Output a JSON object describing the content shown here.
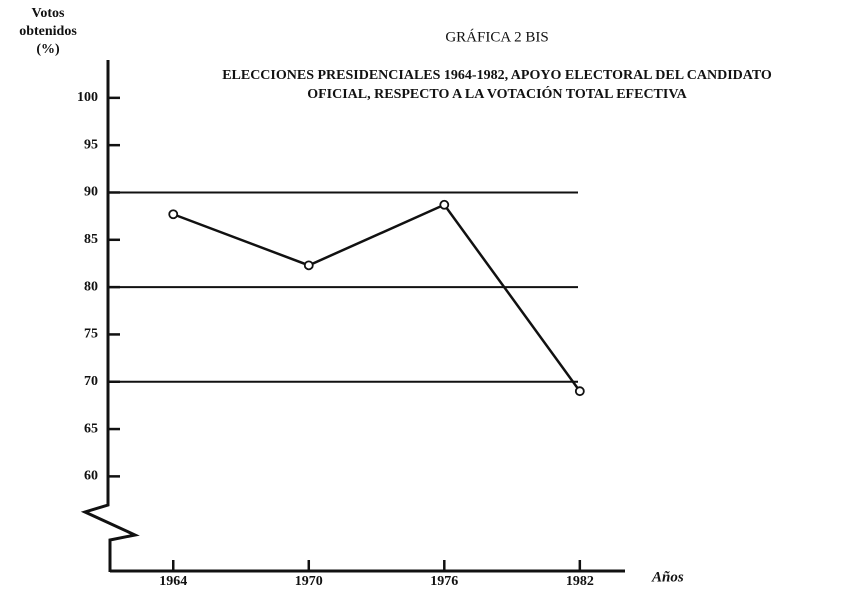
{
  "chart_data": {
    "type": "line",
    "title": "GRÁFICA 2 BIS",
    "subtitle": [
      "ELECCIONES PRESIDENCIALES 1964-1982, APOYO ELECTORAL DEL CANDIDATO",
      "OFICIAL, RESPECTO A LA VOTACIÓN TOTAL EFECTIVA"
    ],
    "ylabel": [
      "Votos",
      "obtenidos",
      "(%)"
    ],
    "xlabel": "Años",
    "x": [
      1964,
      1970,
      1976,
      1982
    ],
    "series": [
      {
        "name": "Apoyo electoral",
        "color": "#111111",
        "values": [
          87.7,
          82.3,
          88.7,
          69.0
        ]
      }
    ],
    "xlim": [
      1961.2,
      1984
    ],
    "xticks": [
      1964,
      1970,
      1976,
      1982
    ],
    "ylim": [
      50,
      104
    ],
    "yticks": [
      60,
      65,
      70,
      75,
      80,
      85,
      90,
      95,
      100
    ],
    "grid_values": [
      70,
      80,
      90
    ]
  }
}
